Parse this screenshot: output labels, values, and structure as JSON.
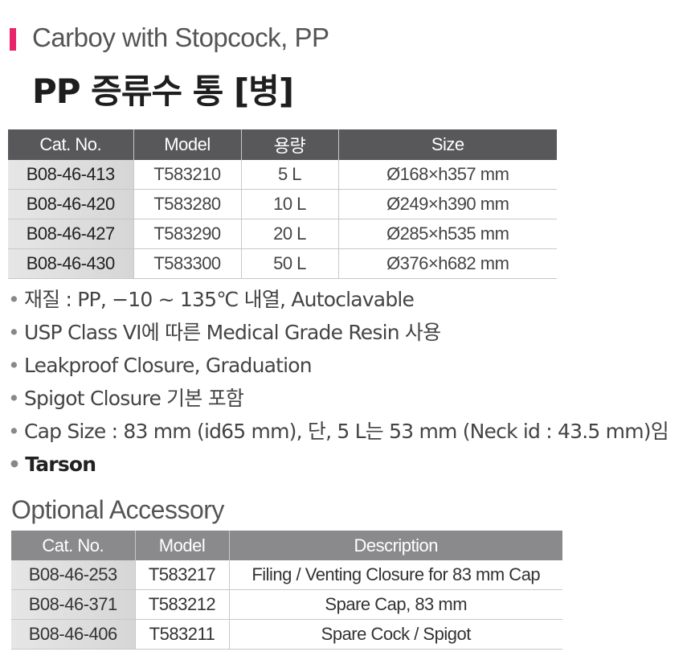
{
  "header": {
    "accent_color": "#e8246a",
    "title_en": "Carboy with Stopcock, PP",
    "title_ko": "PP 증류수 통 [병]"
  },
  "main_table": {
    "columns": [
      "Cat. No.",
      "Model",
      "용량",
      "Size"
    ],
    "rows": [
      [
        "B08-46-413",
        "T583210",
        "5 L",
        "Ø168×h357 mm"
      ],
      [
        "B08-46-420",
        "T583280",
        "10 L",
        "Ø249×h390 mm"
      ],
      [
        "B08-46-427",
        "T583290",
        "20 L",
        "Ø285×h535 mm"
      ],
      [
        "B08-46-430",
        "T583300",
        "50 L",
        "Ø376×h682 mm"
      ]
    ]
  },
  "features": [
    "재질 : PP, −10 ~ 135℃ 내열, Autoclavable",
    "USP Class VI에 따른 Medical Grade Resin 사용",
    "Leakproof Closure, Graduation",
    "Spigot Closure 기본 포함",
    "Cap Size : 83 mm (id65 mm), 단, 5 L는 53 mm (Neck id : 43.5 mm)임",
    "Tarson"
  ],
  "accessory": {
    "title": "Optional Accessory",
    "columns": [
      "Cat. No.",
      "Model",
      "Description"
    ],
    "rows": [
      [
        "B08-46-253",
        "T583217",
        "Filing / Venting Closure for 83 mm Cap"
      ],
      [
        "B08-46-371",
        "T583212",
        "Spare Cap, 83 mm"
      ],
      [
        "B08-46-406",
        "T583211",
        "Spare Cock / Spigot"
      ]
    ]
  }
}
